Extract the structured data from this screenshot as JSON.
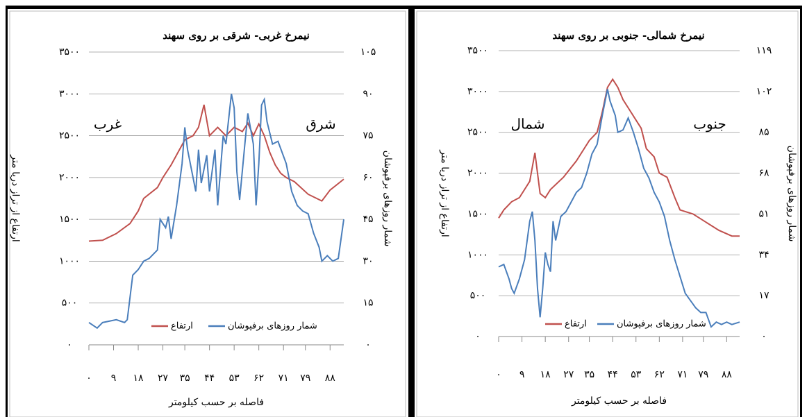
{
  "chart_data": [
    {
      "type": "line",
      "title": "نیمرخ غربی- شرقی بر روی سهند",
      "xlabel": "فاصله بر حسب کیلومتر",
      "ylabel": "ارتفاع از تراز دریا متر",
      "y2label": "شمار روزهای برفپوشان",
      "annotations": [
        "غرب",
        "شرق"
      ],
      "xlim": [
        0,
        93
      ],
      "xticks": [
        {
          "value": 0,
          "label": "۰"
        },
        {
          "value": 9,
          "label": "۹"
        },
        {
          "value": 18,
          "label": "۱۸"
        },
        {
          "value": 27,
          "label": "۲۷"
        },
        {
          "value": 35,
          "label": "۳۵"
        },
        {
          "value": 44,
          "label": "۴۴"
        },
        {
          "value": 53,
          "label": "۵۳"
        },
        {
          "value": 62,
          "label": "۶۲"
        },
        {
          "value": 71,
          "label": "۷۱"
        },
        {
          "value": 79,
          "label": "۷۹"
        },
        {
          "value": 88,
          "label": "۸۸"
        }
      ],
      "ylim": [
        0,
        3500
      ],
      "yticks": [
        {
          "value": 0,
          "label": "۰"
        },
        {
          "value": 500,
          "label": "۵۰۰"
        },
        {
          "value": 1000,
          "label": "۱۰۰۰"
        },
        {
          "value": 1500,
          "label": "۱۵۰۰"
        },
        {
          "value": 2000,
          "label": "۲۰۰۰"
        },
        {
          "value": 2500,
          "label": "۲۵۰۰"
        },
        {
          "value": 3000,
          "label": "۳۰۰۰"
        },
        {
          "value": 3500,
          "label": "۳۵۰۰"
        }
      ],
      "y2lim": [
        0,
        105
      ],
      "y2ticks": [
        {
          "value": 0,
          "label": "۰"
        },
        {
          "value": 15,
          "label": "۱۵"
        },
        {
          "value": 30,
          "label": "۳۰"
        },
        {
          "value": 45,
          "label": "۴۵"
        },
        {
          "value": 60,
          "label": "۶۰"
        },
        {
          "value": 75,
          "label": "۷۵"
        },
        {
          "value": 90,
          "label": "۹۰"
        },
        {
          "value": 105,
          "label": "۱۰۵"
        }
      ],
      "grid": true,
      "series": [
        {
          "name": "ارتفاع",
          "color": "#c0504d",
          "x": [
            0,
            5,
            10,
            15,
            18,
            20,
            25,
            27,
            30,
            32,
            35,
            38,
            40,
            42,
            44,
            47,
            50,
            53,
            56,
            58,
            60,
            62,
            64,
            66,
            68,
            70,
            72,
            75,
            80,
            85,
            88,
            93
          ],
          "values": [
            1240,
            1250,
            1330,
            1450,
            1600,
            1750,
            1880,
            2000,
            2150,
            2270,
            2450,
            2500,
            2600,
            2870,
            2500,
            2600,
            2500,
            2600,
            2550,
            2650,
            2500,
            2640,
            2500,
            2300,
            2150,
            2050,
            2000,
            1950,
            1800,
            1720,
            1850,
            1980
          ]
        },
        {
          "name": "شمار روزهای برفپوشان",
          "color": "#4a7ebb",
          "axis": "y2",
          "x": [
            0,
            3,
            5,
            10,
            13,
            14,
            16,
            18,
            20,
            22,
            25,
            26,
            28,
            29,
            30,
            32,
            34,
            35,
            36,
            38,
            39,
            40,
            41,
            43,
            44,
            46,
            47,
            49,
            50,
            52,
            53,
            54,
            55,
            57,
            58,
            60,
            61,
            62,
            63,
            64,
            65,
            67,
            69,
            72,
            74,
            76,
            78,
            80,
            82,
            84,
            85,
            87,
            89,
            91,
            93
          ],
          "values": [
            8,
            6,
            8,
            9,
            8,
            9,
            25,
            27,
            30,
            31,
            34,
            45,
            42,
            46,
            38,
            50,
            65,
            78,
            70,
            60,
            55,
            70,
            58,
            68,
            55,
            70,
            50,
            75,
            72,
            90,
            85,
            62,
            52,
            73,
            83,
            72,
            50,
            65,
            86,
            88,
            80,
            72,
            73,
            65,
            55,
            50,
            48,
            47,
            40,
            35,
            30,
            32,
            30,
            31,
            45
          ]
        }
      ]
    },
    {
      "type": "line",
      "title": "نیمرخ شمالی- جنوبی بر روی سهند",
      "xlabel": "فاصله بر حسب کیلومتر",
      "ylabel": "ارتفاع از تراز دریا متر",
      "y2label": "شمار روزهای برفپوشان",
      "annotations": [
        "شمال",
        "جنوب"
      ],
      "xlim": [
        0,
        93
      ],
      "xticks": [
        {
          "value": 0,
          "label": "۰"
        },
        {
          "value": 9,
          "label": "۹"
        },
        {
          "value": 18,
          "label": "۱۸"
        },
        {
          "value": 27,
          "label": "۲۷"
        },
        {
          "value": 35,
          "label": "۳۵"
        },
        {
          "value": 44,
          "label": "۴۴"
        },
        {
          "value": 53,
          "label": "۵۳"
        },
        {
          "value": 62,
          "label": "۶۲"
        },
        {
          "value": 71,
          "label": "۷۱"
        },
        {
          "value": 79,
          "label": "۷۹"
        },
        {
          "value": 88,
          "label": "۸۸"
        }
      ],
      "ylim": [
        0,
        3500
      ],
      "yticks": [
        {
          "value": 0,
          "label": "۰"
        },
        {
          "value": 500,
          "label": "۵۰۰"
        },
        {
          "value": 1000,
          "label": "۱۰۰۰"
        },
        {
          "value": 1500,
          "label": "۱۵۰۰"
        },
        {
          "value": 2000,
          "label": "۲۰۰۰"
        },
        {
          "value": 2500,
          "label": "۲۵۰۰"
        },
        {
          "value": 3000,
          "label": "۳۰۰۰"
        },
        {
          "value": 3500,
          "label": "۳۵۰۰"
        }
      ],
      "y2lim": [
        0,
        119
      ],
      "y2ticks": [
        {
          "value": 0,
          "label": "۰"
        },
        {
          "value": 17,
          "label": "۱۷"
        },
        {
          "value": 34,
          "label": "۳۴"
        },
        {
          "value": 51,
          "label": "۵۱"
        },
        {
          "value": 68,
          "label": "۶۸"
        },
        {
          "value": 85,
          "label": "۸۵"
        },
        {
          "value": 102,
          "label": "۱۰۲"
        },
        {
          "value": 119,
          "label": "۱۱۹"
        }
      ],
      "grid": true,
      "series": [
        {
          "name": "ارتفاع",
          "color": "#c0504d",
          "x": [
            0,
            2,
            5,
            8,
            10,
            12,
            14,
            16,
            18,
            20,
            25,
            30,
            35,
            38,
            40,
            42,
            44,
            46,
            48,
            50,
            53,
            55,
            57,
            60,
            62,
            65,
            68,
            70,
            75,
            80,
            85,
            90,
            93
          ],
          "values": [
            1450,
            1550,
            1650,
            1700,
            1800,
            1900,
            2250,
            1750,
            1700,
            1800,
            1950,
            2150,
            2400,
            2500,
            2750,
            3050,
            3150,
            3050,
            2900,
            2800,
            2650,
            2550,
            2300,
            2200,
            2000,
            1950,
            1700,
            1550,
            1500,
            1400,
            1300,
            1230,
            1230
          ]
        },
        {
          "name": "شمار روزهای برفپوشان",
          "color": "#4a7ebb",
          "axis": "y2",
          "x": [
            0,
            2,
            4,
            5,
            6,
            8,
            10,
            12,
            13,
            14,
            15,
            16,
            17,
            18,
            19,
            20,
            21,
            22,
            24,
            26,
            28,
            30,
            32,
            34,
            36,
            38,
            40,
            42,
            43,
            45,
            46,
            48,
            50,
            52,
            54,
            56,
            58,
            60,
            62,
            64,
            66,
            68,
            70,
            72,
            74,
            76,
            78,
            80,
            82,
            84,
            86,
            88,
            90,
            93
          ],
          "values": [
            29,
            30,
            24,
            20,
            18,
            24,
            32,
            48,
            52,
            40,
            20,
            8,
            20,
            35,
            30,
            27,
            48,
            40,
            50,
            52,
            56,
            60,
            62,
            68,
            76,
            80,
            92,
            103,
            98,
            92,
            85,
            86,
            91,
            85,
            78,
            70,
            66,
            60,
            56,
            50,
            40,
            32,
            25,
            18,
            15,
            12,
            10,
            10,
            4,
            6,
            5,
            6,
            5,
            6
          ]
        }
      ]
    }
  ]
}
